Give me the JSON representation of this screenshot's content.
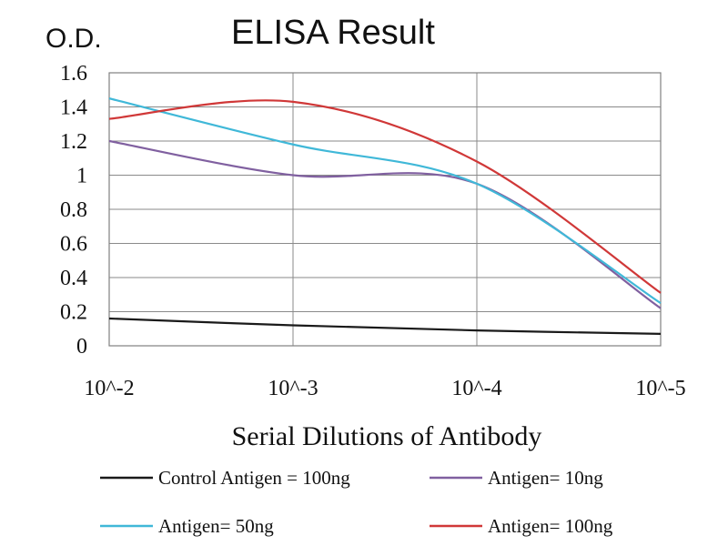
{
  "chart_data": {
    "type": "line",
    "title": "ELISA Result",
    "ylabel": "O.D.",
    "xlabel": "Serial Dilutions of Antibody",
    "categories": [
      "10^-2",
      "10^-3",
      "10^-4",
      "10^-5"
    ],
    "ylim": [
      0,
      1.6
    ],
    "yticks": [
      "0",
      "0.2",
      "0.4",
      "0.6",
      "0.8",
      "1",
      "1.2",
      "1.4",
      "1.6"
    ],
    "grid": true,
    "legend_position": "bottom",
    "series": [
      {
        "name": "Control Antigen = 100ng",
        "color": "#1a1a1a",
        "values": [
          0.16,
          0.12,
          0.09,
          0.07
        ]
      },
      {
        "name": "Antigen= 10ng",
        "color": "#8060a0",
        "values": [
          1.2,
          1.0,
          0.95,
          0.22
        ]
      },
      {
        "name": "Antigen= 50ng",
        "color": "#40b8d8",
        "values": [
          1.45,
          1.18,
          0.95,
          0.25
        ]
      },
      {
        "name": "Antigen= 100ng",
        "color": "#d03838",
        "values": [
          1.33,
          1.43,
          1.08,
          0.31
        ]
      }
    ]
  }
}
